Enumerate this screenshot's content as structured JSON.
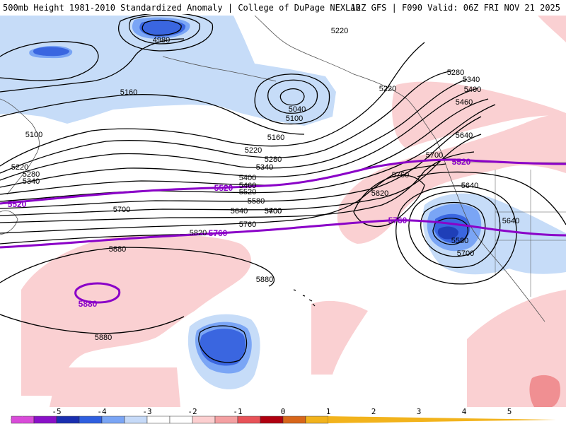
{
  "header": {
    "title_left": "500mb Height 1981-2010 Standardized Anomaly | College of DuPage NEXLAB",
    "title_right": "12Z GFS | F090 Valid: 06Z FRI NOV 21 2025"
  },
  "contour_labels": {
    "h4980": "4980",
    "h5100_a": "5100",
    "h5100_b": "5100",
    "h5040": "5040",
    "h5160_a": "5160",
    "h5160_b": "5160",
    "h5220_a": "5220",
    "h5220_b": "5220",
    "h5220_c": "5220",
    "h5220_d": "5220",
    "h5280_a": "5280",
    "h5280_b": "5280",
    "h5280_c": "5280",
    "h5340_a": "5340",
    "h5340_b": "5340",
    "h5340_c": "5340",
    "h5400_a": "5400",
    "h5400_b": "5400",
    "h5400_c": "5400",
    "h5460_a": "5460",
    "h5460_b": "5460",
    "h5520_a": "5520",
    "h5580_a": "5580",
    "h5580_b": "5580",
    "h5640_a": "5640",
    "h5640_b": "5640",
    "h5640_c": "5640",
    "h5640_d": "5640",
    "h5700_a": "5700",
    "h5700_b": "5700",
    "h5700_c": "5700",
    "h5700_d": "5700",
    "h5760_a": "5760",
    "h5760_b": "5760",
    "h5820_a": "5820",
    "h5820_b": "5820",
    "h5880_a": "5880",
    "h5880_b": "5880",
    "h5880_c": "5880",
    "p5520_a": "5520",
    "p5520_b": "5520",
    "p5520_c": "5520",
    "p5760_a": "5760",
    "p5760_b": "5760",
    "p5880": "5880"
  },
  "colorbar": {
    "labels": [
      "-5",
      "-4",
      "-3",
      "-2",
      "-1",
      "0",
      "1",
      "2",
      "3",
      "4",
      "5"
    ],
    "colors": [
      "#d94bd9",
      "#8a10c8",
      "#1a2fb0",
      "#2f5fe0",
      "#7aa5f5",
      "#c6daf8",
      "#ffffff",
      "#ffffff",
      "#fccfd0",
      "#f4a0a2",
      "#e85258",
      "#b00010",
      "#d8661a",
      "#f2b31c"
    ]
  },
  "colors": {
    "neg_light": "#c6dcf8",
    "neg_mid": "#7aa5f5",
    "neg_strong": "#3a66e0",
    "neg_deep": "#1f3fb8",
    "pos_light": "#fad0d2",
    "pos_mid": "#f08f92",
    "contour": "#000000",
    "thick": "#8a00c8",
    "coast": "#505050"
  }
}
